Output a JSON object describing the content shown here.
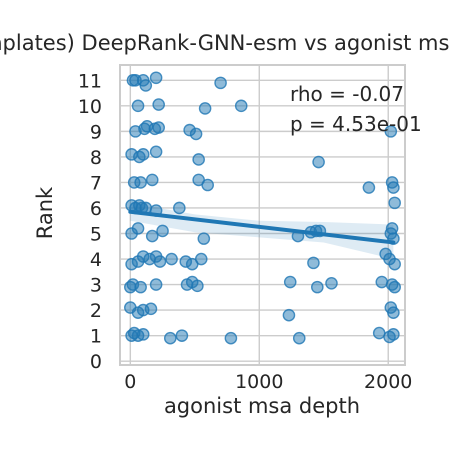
{
  "chart_data": {
    "type": "scatter",
    "title": "(no templates) DeepRank-GNN-esm vs agonist msa depth",
    "xlabel": "agonist msa depth",
    "ylabel": "Rank",
    "xlim": [
      -80,
      2130
    ],
    "ylim": [
      -0.15,
      11.6
    ],
    "xticks": [
      0,
      1000,
      2000
    ],
    "yticks": [
      0,
      1,
      2,
      3,
      4,
      5,
      6,
      7,
      8,
      9,
      10,
      11
    ],
    "grid": true,
    "annotations": [
      "rho = -0.07",
      "p = 4.53e-01"
    ],
    "colors": {
      "points": "#1f77b4",
      "line": "#1f77b4",
      "band": "#1f77b4",
      "grid": "#cccccc",
      "frame": "#cccccc"
    },
    "regression": {
      "x": [
        0,
        2040
      ],
      "y": [
        5.85,
        4.65
      ],
      "ci_x": [
        0,
        500,
        1000,
        1500,
        2040
      ],
      "ci_low": [
        5.5,
        5.05,
        4.85,
        4.65,
        4.0
      ],
      "ci_high": [
        6.2,
        5.75,
        5.5,
        5.45,
        5.35
      ]
    },
    "points": [
      {
        "x": 20,
        "y": 11.0
      },
      {
        "x": 40,
        "y": 11.0
      },
      {
        "x": 100,
        "y": 11.0
      },
      {
        "x": 120,
        "y": 10.8
      },
      {
        "x": 200,
        "y": 11.1
      },
      {
        "x": 700,
        "y": 10.9
      },
      {
        "x": 60,
        "y": 10.0
      },
      {
        "x": 220,
        "y": 10.05
      },
      {
        "x": 580,
        "y": 9.9
      },
      {
        "x": 860,
        "y": 10.0
      },
      {
        "x": 40,
        "y": 9.0
      },
      {
        "x": 110,
        "y": 9.1
      },
      {
        "x": 130,
        "y": 9.2
      },
      {
        "x": 190,
        "y": 9.1
      },
      {
        "x": 220,
        "y": 9.15
      },
      {
        "x": 460,
        "y": 9.05
      },
      {
        "x": 510,
        "y": 8.9
      },
      {
        "x": 2020,
        "y": 9.0
      },
      {
        "x": 10,
        "y": 8.1
      },
      {
        "x": 70,
        "y": 8.0
      },
      {
        "x": 100,
        "y": 8.1
      },
      {
        "x": 200,
        "y": 8.2
      },
      {
        "x": 530,
        "y": 7.9
      },
      {
        "x": 1460,
        "y": 7.8
      },
      {
        "x": 30,
        "y": 7.0
      },
      {
        "x": 80,
        "y": 7.0
      },
      {
        "x": 170,
        "y": 7.1
      },
      {
        "x": 530,
        "y": 7.1
      },
      {
        "x": 600,
        "y": 6.9
      },
      {
        "x": 1850,
        "y": 6.8
      },
      {
        "x": 2030,
        "y": 7.0
      },
      {
        "x": 2040,
        "y": 6.8
      },
      {
        "x": 10,
        "y": 6.1
      },
      {
        "x": 40,
        "y": 6.0
      },
      {
        "x": 70,
        "y": 6.1
      },
      {
        "x": 90,
        "y": 6.0
      },
      {
        "x": 120,
        "y": 6.0
      },
      {
        "x": 200,
        "y": 5.9
      },
      {
        "x": 380,
        "y": 6.0
      },
      {
        "x": 2050,
        "y": 6.2
      },
      {
        "x": 10,
        "y": 5.0
      },
      {
        "x": 60,
        "y": 5.2
      },
      {
        "x": 170,
        "y": 4.9
      },
      {
        "x": 250,
        "y": 5.1
      },
      {
        "x": 570,
        "y": 4.8
      },
      {
        "x": 1300,
        "y": 4.9
      },
      {
        "x": 1400,
        "y": 5.05
      },
      {
        "x": 1440,
        "y": 5.1
      },
      {
        "x": 1470,
        "y": 5.1
      },
      {
        "x": 2020,
        "y": 5.0
      },
      {
        "x": 2030,
        "y": 5.2
      },
      {
        "x": 2040,
        "y": 4.8
      },
      {
        "x": 10,
        "y": 3.8
      },
      {
        "x": 60,
        "y": 3.9
      },
      {
        "x": 100,
        "y": 4.1
      },
      {
        "x": 150,
        "y": 4.0
      },
      {
        "x": 200,
        "y": 4.1
      },
      {
        "x": 230,
        "y": 3.9
      },
      {
        "x": 320,
        "y": 4.0
      },
      {
        "x": 430,
        "y": 3.9
      },
      {
        "x": 480,
        "y": 3.8
      },
      {
        "x": 550,
        "y": 4.0
      },
      {
        "x": 1420,
        "y": 3.85
      },
      {
        "x": 1980,
        "y": 4.2
      },
      {
        "x": 2010,
        "y": 4.0
      },
      {
        "x": 2050,
        "y": 3.8
      },
      {
        "x": 0,
        "y": 2.9
      },
      {
        "x": 20,
        "y": 3.0
      },
      {
        "x": 80,
        "y": 2.9
      },
      {
        "x": 200,
        "y": 3.0
      },
      {
        "x": 440,
        "y": 3.0
      },
      {
        "x": 480,
        "y": 3.1
      },
      {
        "x": 520,
        "y": 2.95
      },
      {
        "x": 1240,
        "y": 3.1
      },
      {
        "x": 1450,
        "y": 2.9
      },
      {
        "x": 1560,
        "y": 3.05
      },
      {
        "x": 1950,
        "y": 3.1
      },
      {
        "x": 2030,
        "y": 3.0
      },
      {
        "x": 2050,
        "y": 2.9
      },
      {
        "x": 0,
        "y": 2.1
      },
      {
        "x": 60,
        "y": 1.9
      },
      {
        "x": 100,
        "y": 2.0
      },
      {
        "x": 160,
        "y": 2.05
      },
      {
        "x": 1230,
        "y": 1.8
      },
      {
        "x": 2020,
        "y": 2.1
      },
      {
        "x": 2040,
        "y": 1.9
      },
      {
        "x": 10,
        "y": 1.0
      },
      {
        "x": 30,
        "y": 1.1
      },
      {
        "x": 60,
        "y": 1.0
      },
      {
        "x": 100,
        "y": 1.05
      },
      {
        "x": 310,
        "y": 0.9
      },
      {
        "x": 400,
        "y": 1.0
      },
      {
        "x": 780,
        "y": 0.9
      },
      {
        "x": 1310,
        "y": 0.9
      },
      {
        "x": 1930,
        "y": 1.1
      },
      {
        "x": 2010,
        "y": 0.95
      },
      {
        "x": 2040,
        "y": 1.05
      }
    ]
  }
}
